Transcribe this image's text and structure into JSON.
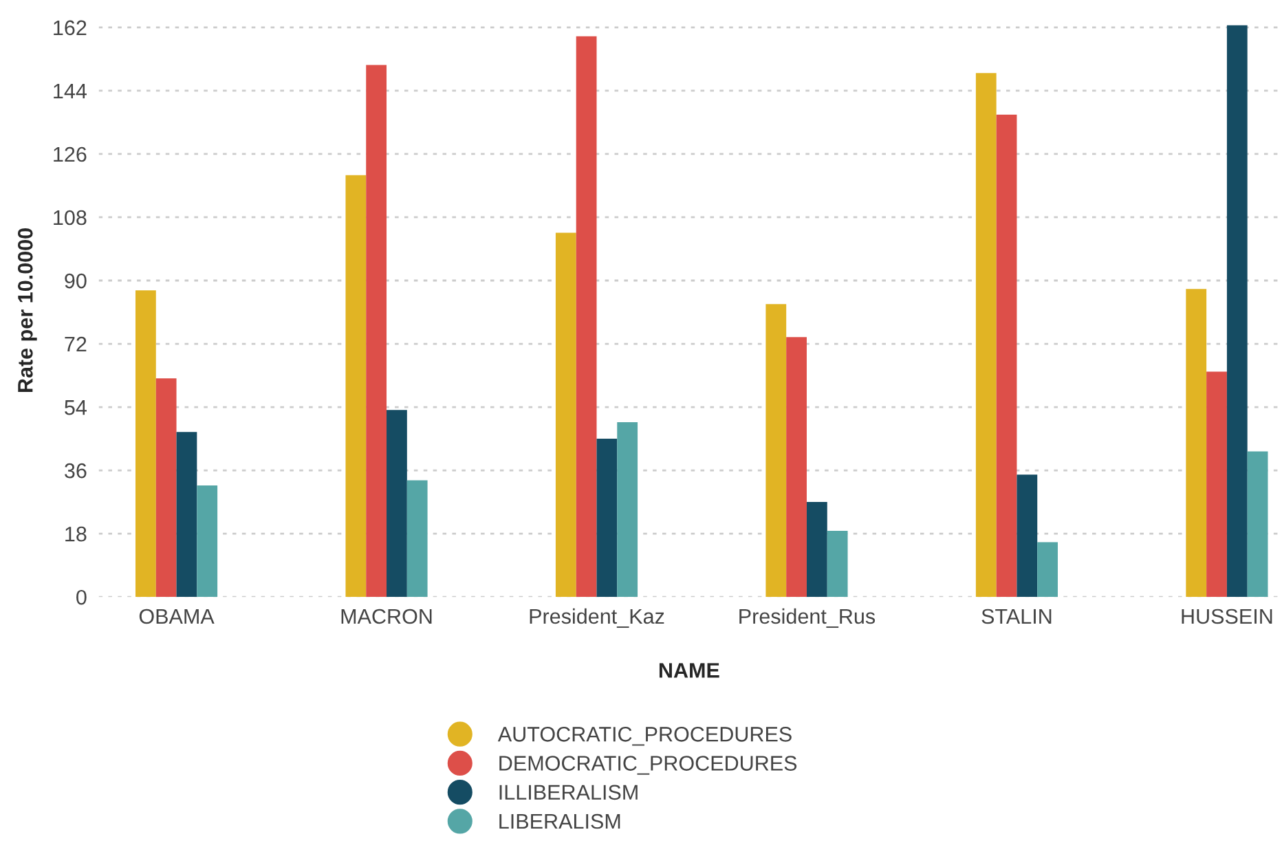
{
  "chart_data": {
    "type": "bar",
    "xlabel": "NAME",
    "ylabel": "Rate per 10.0000",
    "categories": [
      "OBAMA",
      "MACRON",
      "President_Kaz",
      "President_Rus",
      "STALIN",
      "HUSSEIN"
    ],
    "series": [
      {
        "name": "AUTOCRATIC_PROCEDURES",
        "color": "#e1b424",
        "values": [
          87.2,
          120.0,
          103.6,
          83.3,
          149.0,
          87.6
        ]
      },
      {
        "name": "DEMOCRATIC_PROCEDURES",
        "color": "#dd4f49",
        "values": [
          62.2,
          151.3,
          159.5,
          73.9,
          137.2,
          64.1
        ]
      },
      {
        "name": "ILLIBERALISM",
        "color": "#154c63",
        "values": [
          46.9,
          53.2,
          45.0,
          27.0,
          34.8,
          162.6
        ]
      },
      {
        "name": "LIBERALISM",
        "color": "#55a6a6",
        "values": [
          31.7,
          33.2,
          49.7,
          18.8,
          15.6,
          41.4
        ]
      }
    ],
    "ylim": [
      0,
      163
    ],
    "yticks": [
      0,
      18,
      36,
      54,
      72,
      90,
      108,
      126,
      144,
      162
    ],
    "grid": "y",
    "legend": "bottom"
  }
}
